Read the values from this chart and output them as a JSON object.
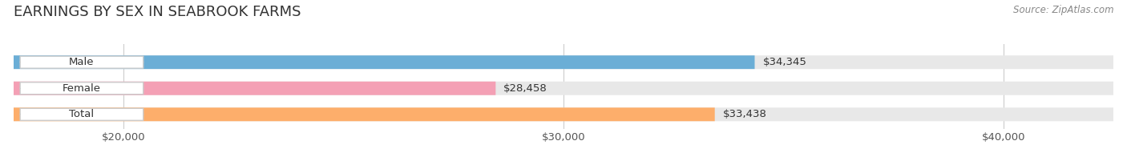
{
  "title": "EARNINGS BY SEX IN SEABROOK FARMS",
  "source": "Source: ZipAtlas.com",
  "categories": [
    "Male",
    "Female",
    "Total"
  ],
  "values": [
    34345,
    28458,
    33438
  ],
  "bar_colors": [
    "#6baed6",
    "#f4a0b5",
    "#fdae6b"
  ],
  "bar_label_texts": [
    "$34,345",
    "$28,458",
    "$33,438"
  ],
  "x_tick_labels": [
    "$20,000",
    "$30,000",
    "$40,000"
  ],
  "x_tick_values": [
    20000,
    30000,
    40000
  ],
  "xmin": 17500,
  "xmax": 42500,
  "bar_height": 0.52,
  "title_fontsize": 13,
  "label_fontsize": 9.5,
  "tick_fontsize": 9.5,
  "source_fontsize": 8.5,
  "background_color": "#ffffff",
  "track_background": "#e8e8e8",
  "grid_color": "#cccccc",
  "text_color": "#555555",
  "label_text_color": "#333333"
}
